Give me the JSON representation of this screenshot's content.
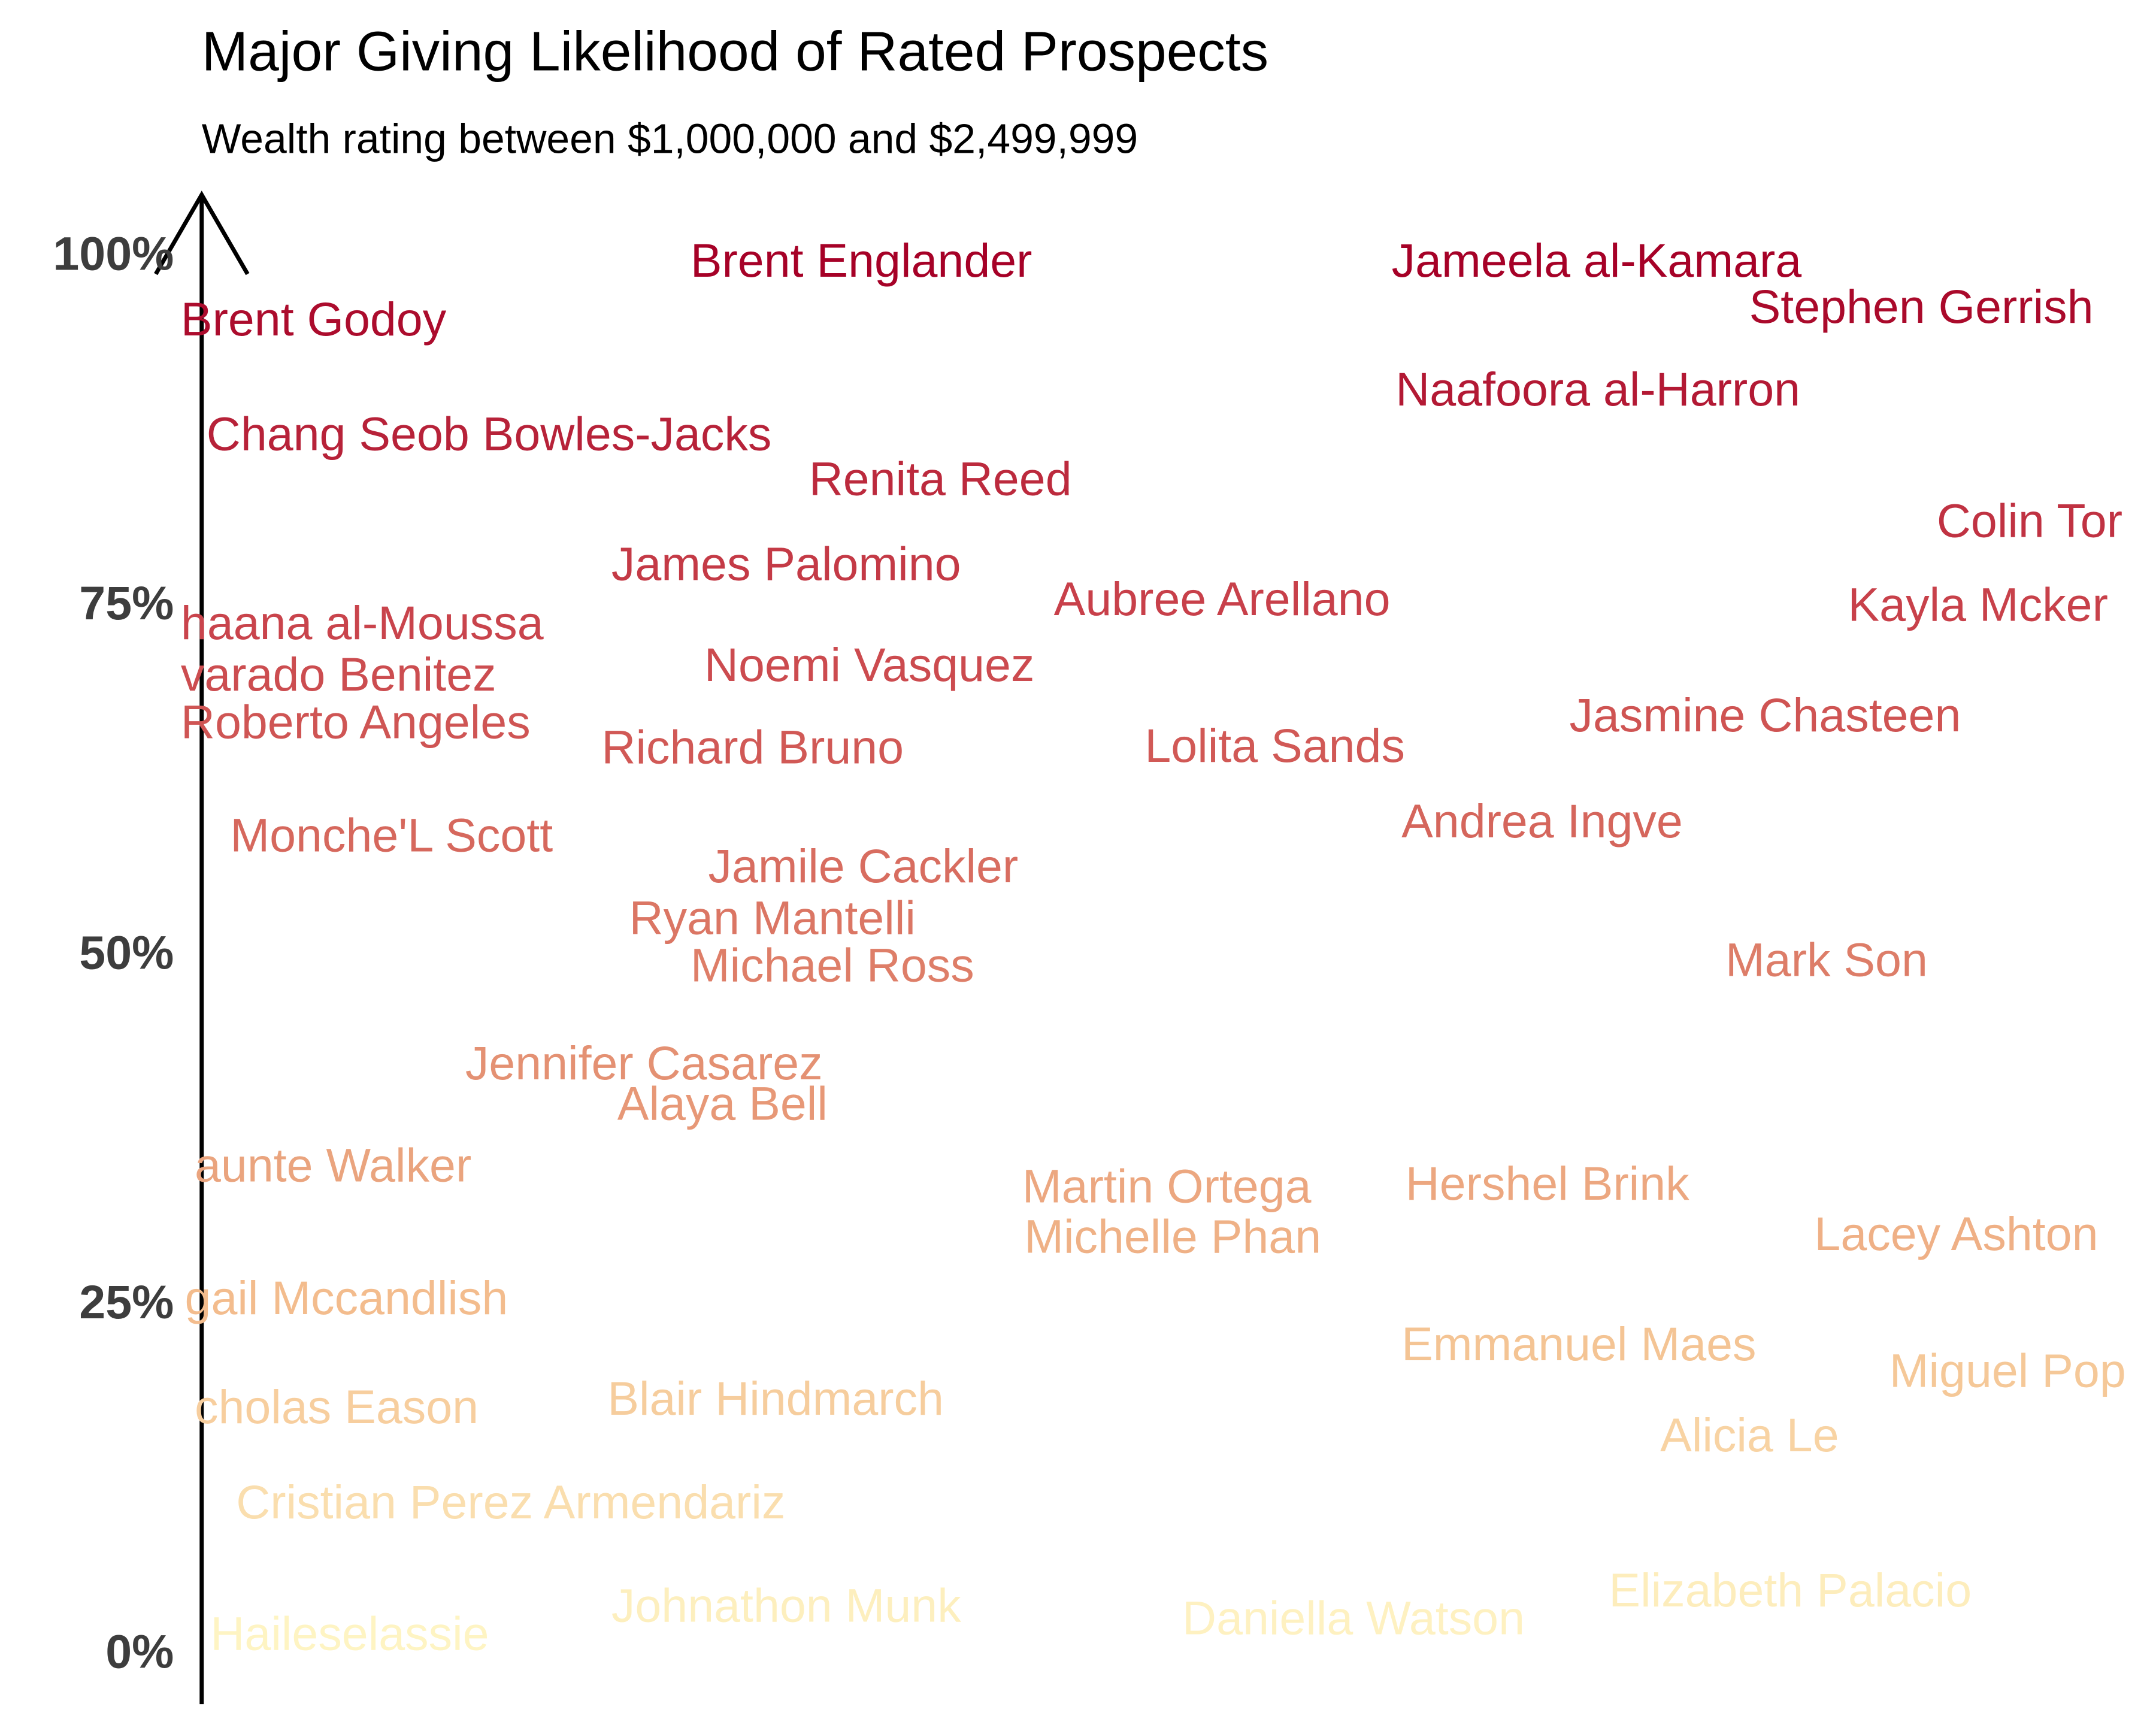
{
  "chart_data": {
    "type": "text-scatter",
    "title": "Major Giving Likelihood of Rated Prospects",
    "subtitle": "Wealth rating between $1,000,000 and $2,499,999",
    "ylim": [
      0,
      100
    ],
    "yticks": [
      {
        "value": 0,
        "label": "0%"
      },
      {
        "value": 25,
        "label": "25%"
      },
      {
        "value": 50,
        "label": "50%"
      },
      {
        "value": 75,
        "label": "75%"
      },
      {
        "value": 100,
        "label": "100%"
      }
    ],
    "xlim": [
      0,
      100
    ],
    "colors": [
      "#fff7c6",
      "#f3bd8d",
      "#dd7c67",
      "#c8414a",
      "#a50026"
    ],
    "labels": [
      "Brent Godoy",
      "Brent Englander",
      "Jameela al-Kamara",
      "Stephen Gerrish",
      "Naafoora al-Harron",
      "Chang Seob Bowles-Jacks",
      "Renita Reed",
      "Colin Tor",
      "James Palomino",
      "Aubree Arellano",
      "Kayla Mcker",
      "haana al-Moussa",
      "Noemi Vasquez",
      "varado Benitez",
      "Roberto Angeles",
      "Jasmine Chasteen",
      "Richard Bruno",
      "Lolita Sands",
      "Monche'L Scott",
      "Andrea Ingve",
      "Jamile Cackler",
      "Ryan Mantelli",
      "Michael Ross",
      "Mark Son",
      "Jennifer Casarez",
      "Alaya Bell",
      "aunte Walker",
      "Martin Ortega",
      "Hershel Brink",
      "Michelle Phan",
      "Lacey Ashton",
      "gail Mccandlish",
      "Emmanuel Maes",
      "Miguel Pop",
      "cholas Eason",
      "Blair Hindmarch",
      "Alicia Le",
      "Cristian Perez Armendariz",
      "Johnathon Munk",
      "Elizabeth Palacio",
      "Daniella Watson",
      "Haileselassie"
    ],
    "x": [
      0,
      25.8,
      61.3,
      79.4,
      61.5,
      1.3,
      31.8,
      88.9,
      21.8,
      44.2,
      84.4,
      0,
      26.5,
      0,
      0,
      70.3,
      21.3,
      48.8,
      2.5,
      61.8,
      26.7,
      22.7,
      25.8,
      78.2,
      14.4,
      22.1,
      0.7,
      42.6,
      62.0,
      42.7,
      82.7,
      0.2,
      61.8,
      86.5,
      0.7,
      21.6,
      74.9,
      2.8,
      21.8,
      72.3,
      50.7,
      1.5
    ],
    "values": [
      95.3,
      99.5,
      99.5,
      96.2,
      90.3,
      87.1,
      83.9,
      80.9,
      77.8,
      75.3,
      74.9,
      73.6,
      70.6,
      69.9,
      66.5,
      67.0,
      64.7,
      64.8,
      58.4,
      59.4,
      56.2,
      52.5,
      49.1,
      49.5,
      42.1,
      39.2,
      34.8,
      33.3,
      33.5,
      29.7,
      29.9,
      25.3,
      22.0,
      20.1,
      17.5,
      18.1,
      15.5,
      10.7,
      3.3,
      4.4,
      2.4,
      1.3
    ]
  }
}
